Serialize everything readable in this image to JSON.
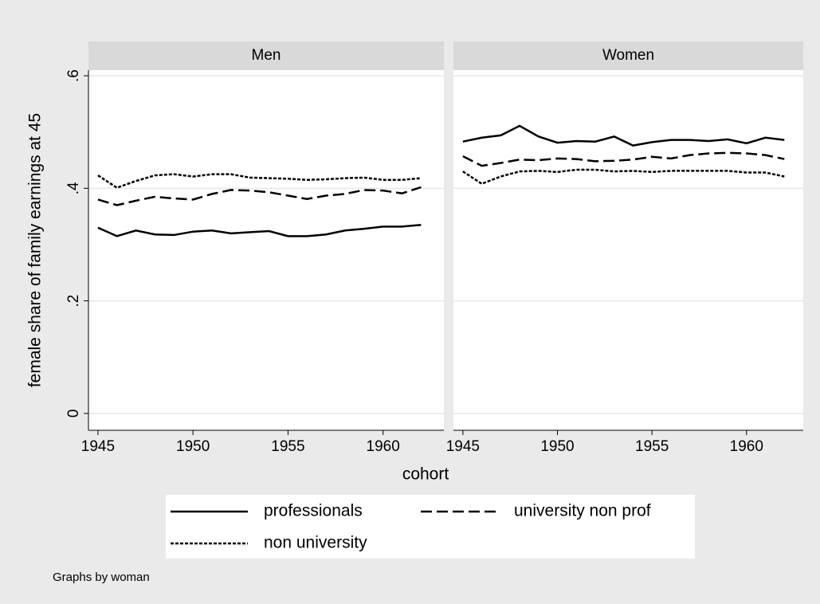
{
  "figure": {
    "xlabel": "cohort",
    "ylabel": "female share of family earnings at 45",
    "note": "Graphs by woman",
    "legend_position": "bottom"
  },
  "chart_data": [
    {
      "type": "line",
      "title": "Men",
      "x": [
        1945,
        1946,
        1947,
        1948,
        1949,
        1950,
        1951,
        1952,
        1953,
        1954,
        1955,
        1956,
        1957,
        1958,
        1959,
        1960,
        1961,
        1962
      ],
      "series": [
        {
          "name": "professionals",
          "color": "#000000",
          "dash": "solid",
          "values": [
            0.33,
            0.315,
            0.325,
            0.318,
            0.317,
            0.323,
            0.325,
            0.32,
            0.322,
            0.324,
            0.315,
            0.315,
            0.318,
            0.325,
            0.328,
            0.332,
            0.332,
            0.335
          ]
        },
        {
          "name": "university non prof",
          "color": "#000000",
          "dash": "long",
          "values": [
            0.38,
            0.37,
            0.378,
            0.385,
            0.382,
            0.38,
            0.39,
            0.397,
            0.396,
            0.393,
            0.387,
            0.381,
            0.387,
            0.39,
            0.397,
            0.396,
            0.391,
            0.402
          ]
        },
        {
          "name": "non university",
          "color": "#000000",
          "dash": "short",
          "values": [
            0.423,
            0.401,
            0.413,
            0.423,
            0.425,
            0.421,
            0.425,
            0.425,
            0.419,
            0.418,
            0.417,
            0.415,
            0.416,
            0.418,
            0.419,
            0.415,
            0.415,
            0.418
          ]
        }
      ],
      "xlim": [
        1944.5,
        1963.2
      ],
      "xticks": [
        1945,
        1950,
        1955,
        1960
      ],
      "ylim": [
        -0.03,
        0.61
      ],
      "yticks": [
        0,
        {
          "value": 0.2,
          "label": ".2"
        },
        {
          "value": 0.4,
          "label": ".4"
        },
        {
          "value": 0.6,
          "label": ".6"
        }
      ],
      "grid": true
    },
    {
      "type": "line",
      "title": "Women",
      "x": [
        1945,
        1946,
        1947,
        1948,
        1949,
        1950,
        1951,
        1952,
        1953,
        1954,
        1955,
        1956,
        1957,
        1958,
        1959,
        1960,
        1961,
        1962
      ],
      "series": [
        {
          "name": "professionals",
          "color": "#000000",
          "dash": "solid",
          "values": [
            0.483,
            0.49,
            0.494,
            0.511,
            0.492,
            0.481,
            0.484,
            0.483,
            0.492,
            0.476,
            0.482,
            0.486,
            0.486,
            0.484,
            0.487,
            0.48,
            0.49,
            0.486
          ]
        },
        {
          "name": "university non prof",
          "color": "#000000",
          "dash": "long",
          "values": [
            0.457,
            0.44,
            0.445,
            0.451,
            0.45,
            0.453,
            0.452,
            0.448,
            0.449,
            0.451,
            0.456,
            0.453,
            0.459,
            0.462,
            0.463,
            0.462,
            0.459,
            0.452
          ]
        },
        {
          "name": "non university",
          "color": "#000000",
          "dash": "short",
          "values": [
            0.43,
            0.408,
            0.421,
            0.43,
            0.431,
            0.429,
            0.433,
            0.433,
            0.43,
            0.431,
            0.429,
            0.431,
            0.431,
            0.431,
            0.431,
            0.428,
            0.428,
            0.421
          ]
        }
      ],
      "xlim": [
        1944.5,
        1963.0
      ],
      "xticks": [
        1945,
        1950,
        1955,
        1960
      ],
      "ylim": [
        -0.03,
        0.61
      ],
      "yticks": [
        0,
        {
          "value": 0.2,
          "label": ".2"
        },
        {
          "value": 0.4,
          "label": ".4"
        },
        {
          "value": 0.6,
          "label": ".6"
        }
      ],
      "grid": true
    }
  ]
}
